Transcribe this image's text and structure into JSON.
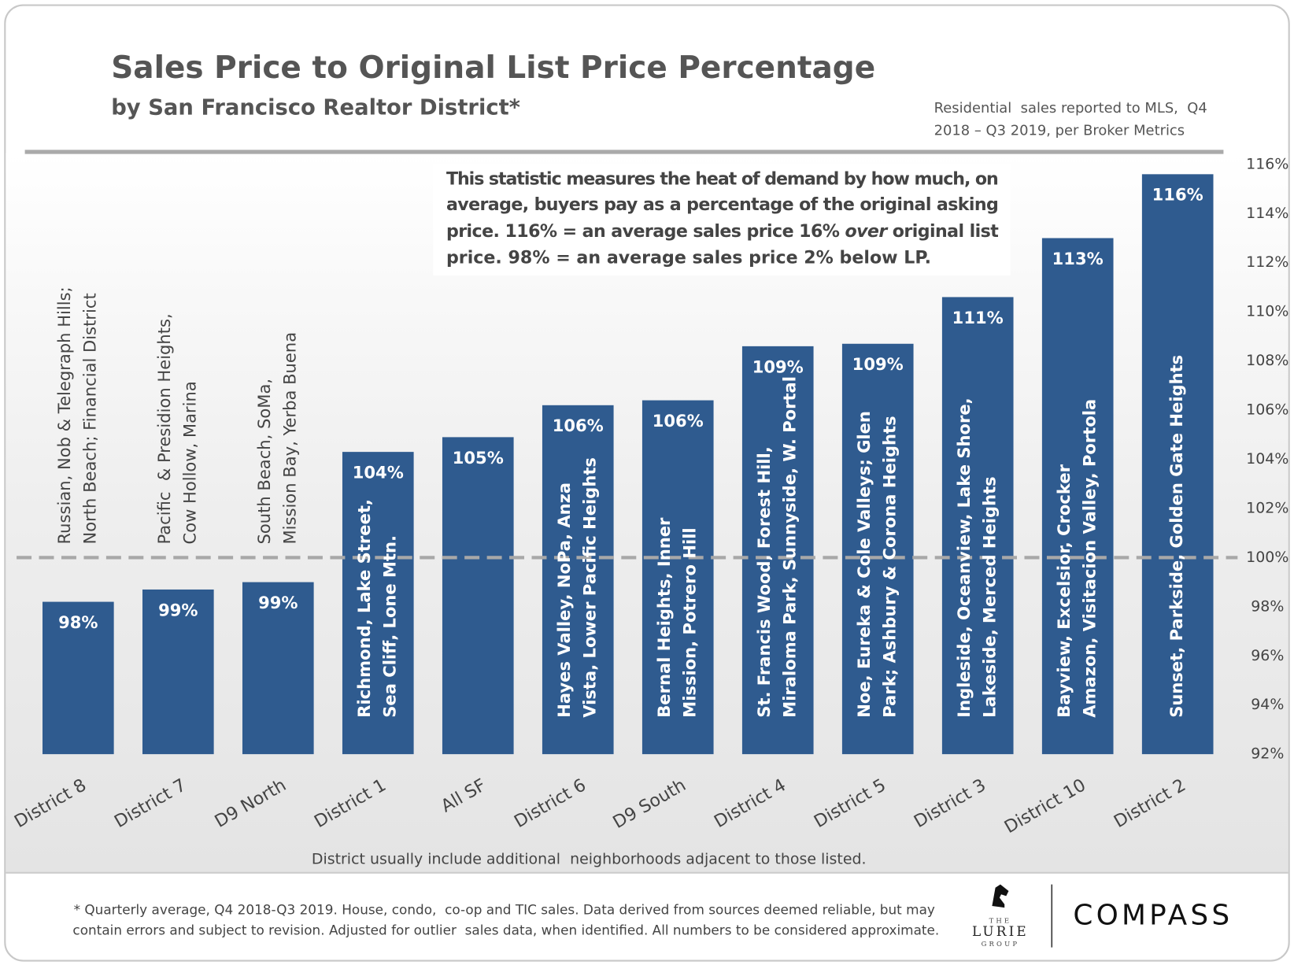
{
  "header": {
    "title": "Sales Price to Original List Price Percentage",
    "subtitle": "by San Francisco Realtor District*",
    "source": [
      "Residential  sales reported to MLS,  Q4",
      "2018 – Q3 2019, per Broker Metrics"
    ]
  },
  "annotation": [
    [
      "This statistic measures the heat of demand by how much, on"
    ],
    [
      "average, buyers pay as a percentage of the original asking"
    ],
    [
      "price. 116% = an average sales price 16% ",
      "over",
      " original list"
    ],
    [
      "price. 98% = an average sales price 2% below LP."
    ]
  ],
  "chart_data": {
    "type": "bar",
    "categories": [
      "District 8",
      "District 7",
      "D9 North",
      "District 1",
      "All SF",
      "District 6",
      "D9 South",
      "District 4",
      "District 5",
      "District 3",
      "District 10",
      "District 2"
    ],
    "values": [
      98.2,
      98.7,
      99.0,
      104.3,
      104.9,
      106.2,
      106.4,
      108.6,
      108.7,
      110.6,
      113.0,
      115.6
    ],
    "value_labels": [
      "98%",
      "99%",
      "99%",
      "104%",
      "105%",
      "106%",
      "106%",
      "109%",
      "109%",
      "111%",
      "113%",
      "116%"
    ],
    "category_notes": [
      [
        "Russian, Nob & Telegraph Hills;",
        "North Beach; Financial District"
      ],
      [
        "Pacific  & Presidion Heights,",
        "Cow Hollow, Marina"
      ],
      [
        "South Beach, SoMa,",
        "Mission Bay, Yerba Buena"
      ],
      [
        "Richmond, Lake Street,",
        "Sea Cliff, Lone Mtn."
      ],
      null,
      [
        "Hayes Valley, NoPa, Anza",
        "Vista, Lower Pacific Heights"
      ],
      [
        "Bernal Heights, Inner",
        "Mission, Potrero Hill"
      ],
      [
        "St. Francis Wood, Forest Hill,",
        "Miraloma Park, Sunnyside, W. Portal"
      ],
      [
        "Noe, Eureka & Cole Valleys; Glen",
        "Park; Ashbury & Corona Heights"
      ],
      [
        "Ingleside, Oceanview, Lake Shore,",
        "Lakeside, Merced Heights"
      ],
      [
        "Bayview, Excelsior, Crocker",
        "Amazon, Visitacion Valley, Portola"
      ],
      [
        "Sunset, Parkside, Golden Gate Heights"
      ]
    ],
    "color": "#2f5b8f",
    "reference_line": 100,
    "ylim": [
      92,
      116
    ],
    "yticks": [
      {
        "value": 92,
        "label": "92%"
      },
      {
        "value": 94,
        "label": "94%"
      },
      {
        "value": 96,
        "label": "96%"
      },
      {
        "value": 98,
        "label": "98%"
      },
      {
        "value": 100,
        "label": "100%"
      },
      {
        "value": 102,
        "label": "102%"
      },
      {
        "value": 104,
        "label": "104%"
      },
      {
        "value": 106,
        "label": "106%"
      },
      {
        "value": 108,
        "label": "108%"
      },
      {
        "value": 110,
        "label": "110%"
      },
      {
        "value": 112,
        "label": "112%"
      },
      {
        "value": 114,
        "label": "114%"
      },
      {
        "value": 116,
        "label": "116%"
      }
    ],
    "y_axis_side": "right",
    "grid": false
  },
  "footer": {
    "note": "District usually include additional  neighborhoods adjacent to those listed.",
    "footnote": [
      "* Quarterly average, Q4 2018-Q3 2019. House, condo,  co-op and TIC sales. Data derived from sources deemed reliable, but may",
      "contain errors and subject to revision. Adjusted for outlier  sales data, when identified. All numbers to be considered approximate."
    ],
    "logo": [
      "THE",
      "LURIE",
      "GROUP"
    ],
    "brand": "COMPASS"
  }
}
